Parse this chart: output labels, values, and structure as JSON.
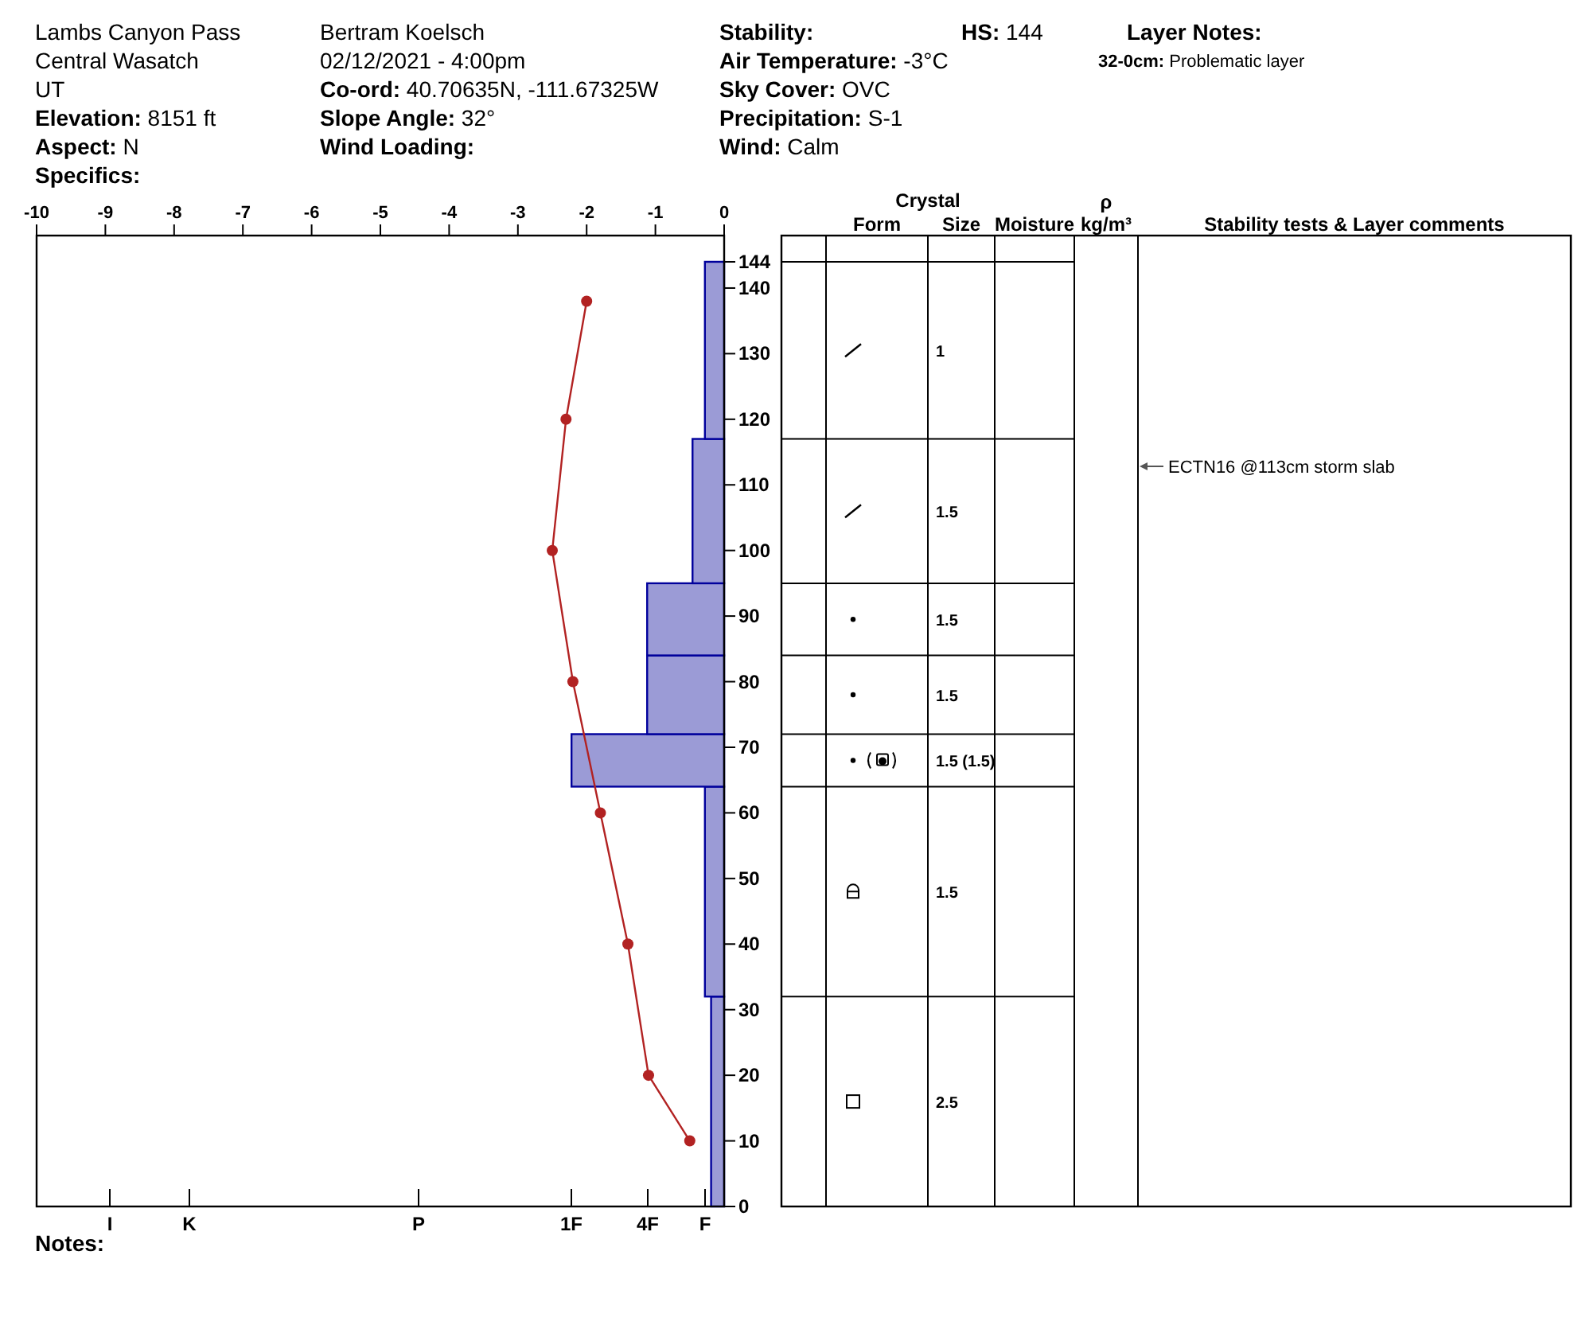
{
  "chart_data": [
    {
      "type": "histogram",
      "orientation": "horizontal",
      "series": [
        {
          "type": "histogram",
          "bins": [
            0,
            32,
            64,
            72,
            84,
            95,
            117,
            144
          ],
          "values": [
            -0.19,
            -0.28,
            -2.22,
            -1.12,
            -1.12,
            -0.46,
            -0.28
          ],
          "color": "#9b9bd6"
        },
        {
          "type": "line",
          "x": [
            138,
            120,
            100,
            80,
            60,
            40,
            20,
            10
          ],
          "values": [
            -2.0,
            -2.3,
            -2.5,
            -2.2,
            -1.8,
            -1.4,
            -1.1,
            -0.5
          ],
          "color": "#b22222",
          "marker": "circle"
        }
      ],
      "xlim": [
        -10,
        0
      ],
      "xticks": [
        -10,
        -9,
        -8,
        -7,
        -6,
        -5,
        -4,
        -3,
        -2,
        -1,
        0
      ],
      "ylim": [
        0,
        148
      ],
      "yticks": [
        0,
        10,
        20,
        30,
        40,
        50,
        60,
        70,
        80,
        90,
        100,
        110,
        120,
        130,
        140,
        144
      ],
      "annotations": [
        "Lambs Canyon Pass",
        "Central Wasatch",
        "UT",
        "Elevation: 8151 ft",
        "Aspect: N",
        "Specifics:",
        "Bertram Koelsch",
        "02/12/2021 - 4:00pm",
        "Co-ord: 40.70635N, -111.67325W",
        "Slope Angle: 32°",
        "Wind Loading:",
        "Stability:",
        "Air Temperature: -3°C",
        "Sky Cover: OVC",
        "Precipitation: S-1",
        "Wind: Calm",
        "HS: 144",
        "Layer Notes:",
        "32-0cm: Problematic layer",
        "Notes:",
        "I",
        "K",
        "P",
        "1F",
        "4F",
        "F",
        "ECTN16 @113cm  storm slab"
      ]
    },
    {
      "type": "other",
      "xlabel": "Crystal",
      "categories": [
        "Form",
        "Size",
        "Moisture",
        "ρ kg/m³",
        "Stability tests & Layer comments"
      ],
      "annotations": [
        "1",
        "1.5",
        "1.5",
        "1.5",
        "1.5 (1.5)",
        "1.5",
        "2.5"
      ]
    }
  ]
}
